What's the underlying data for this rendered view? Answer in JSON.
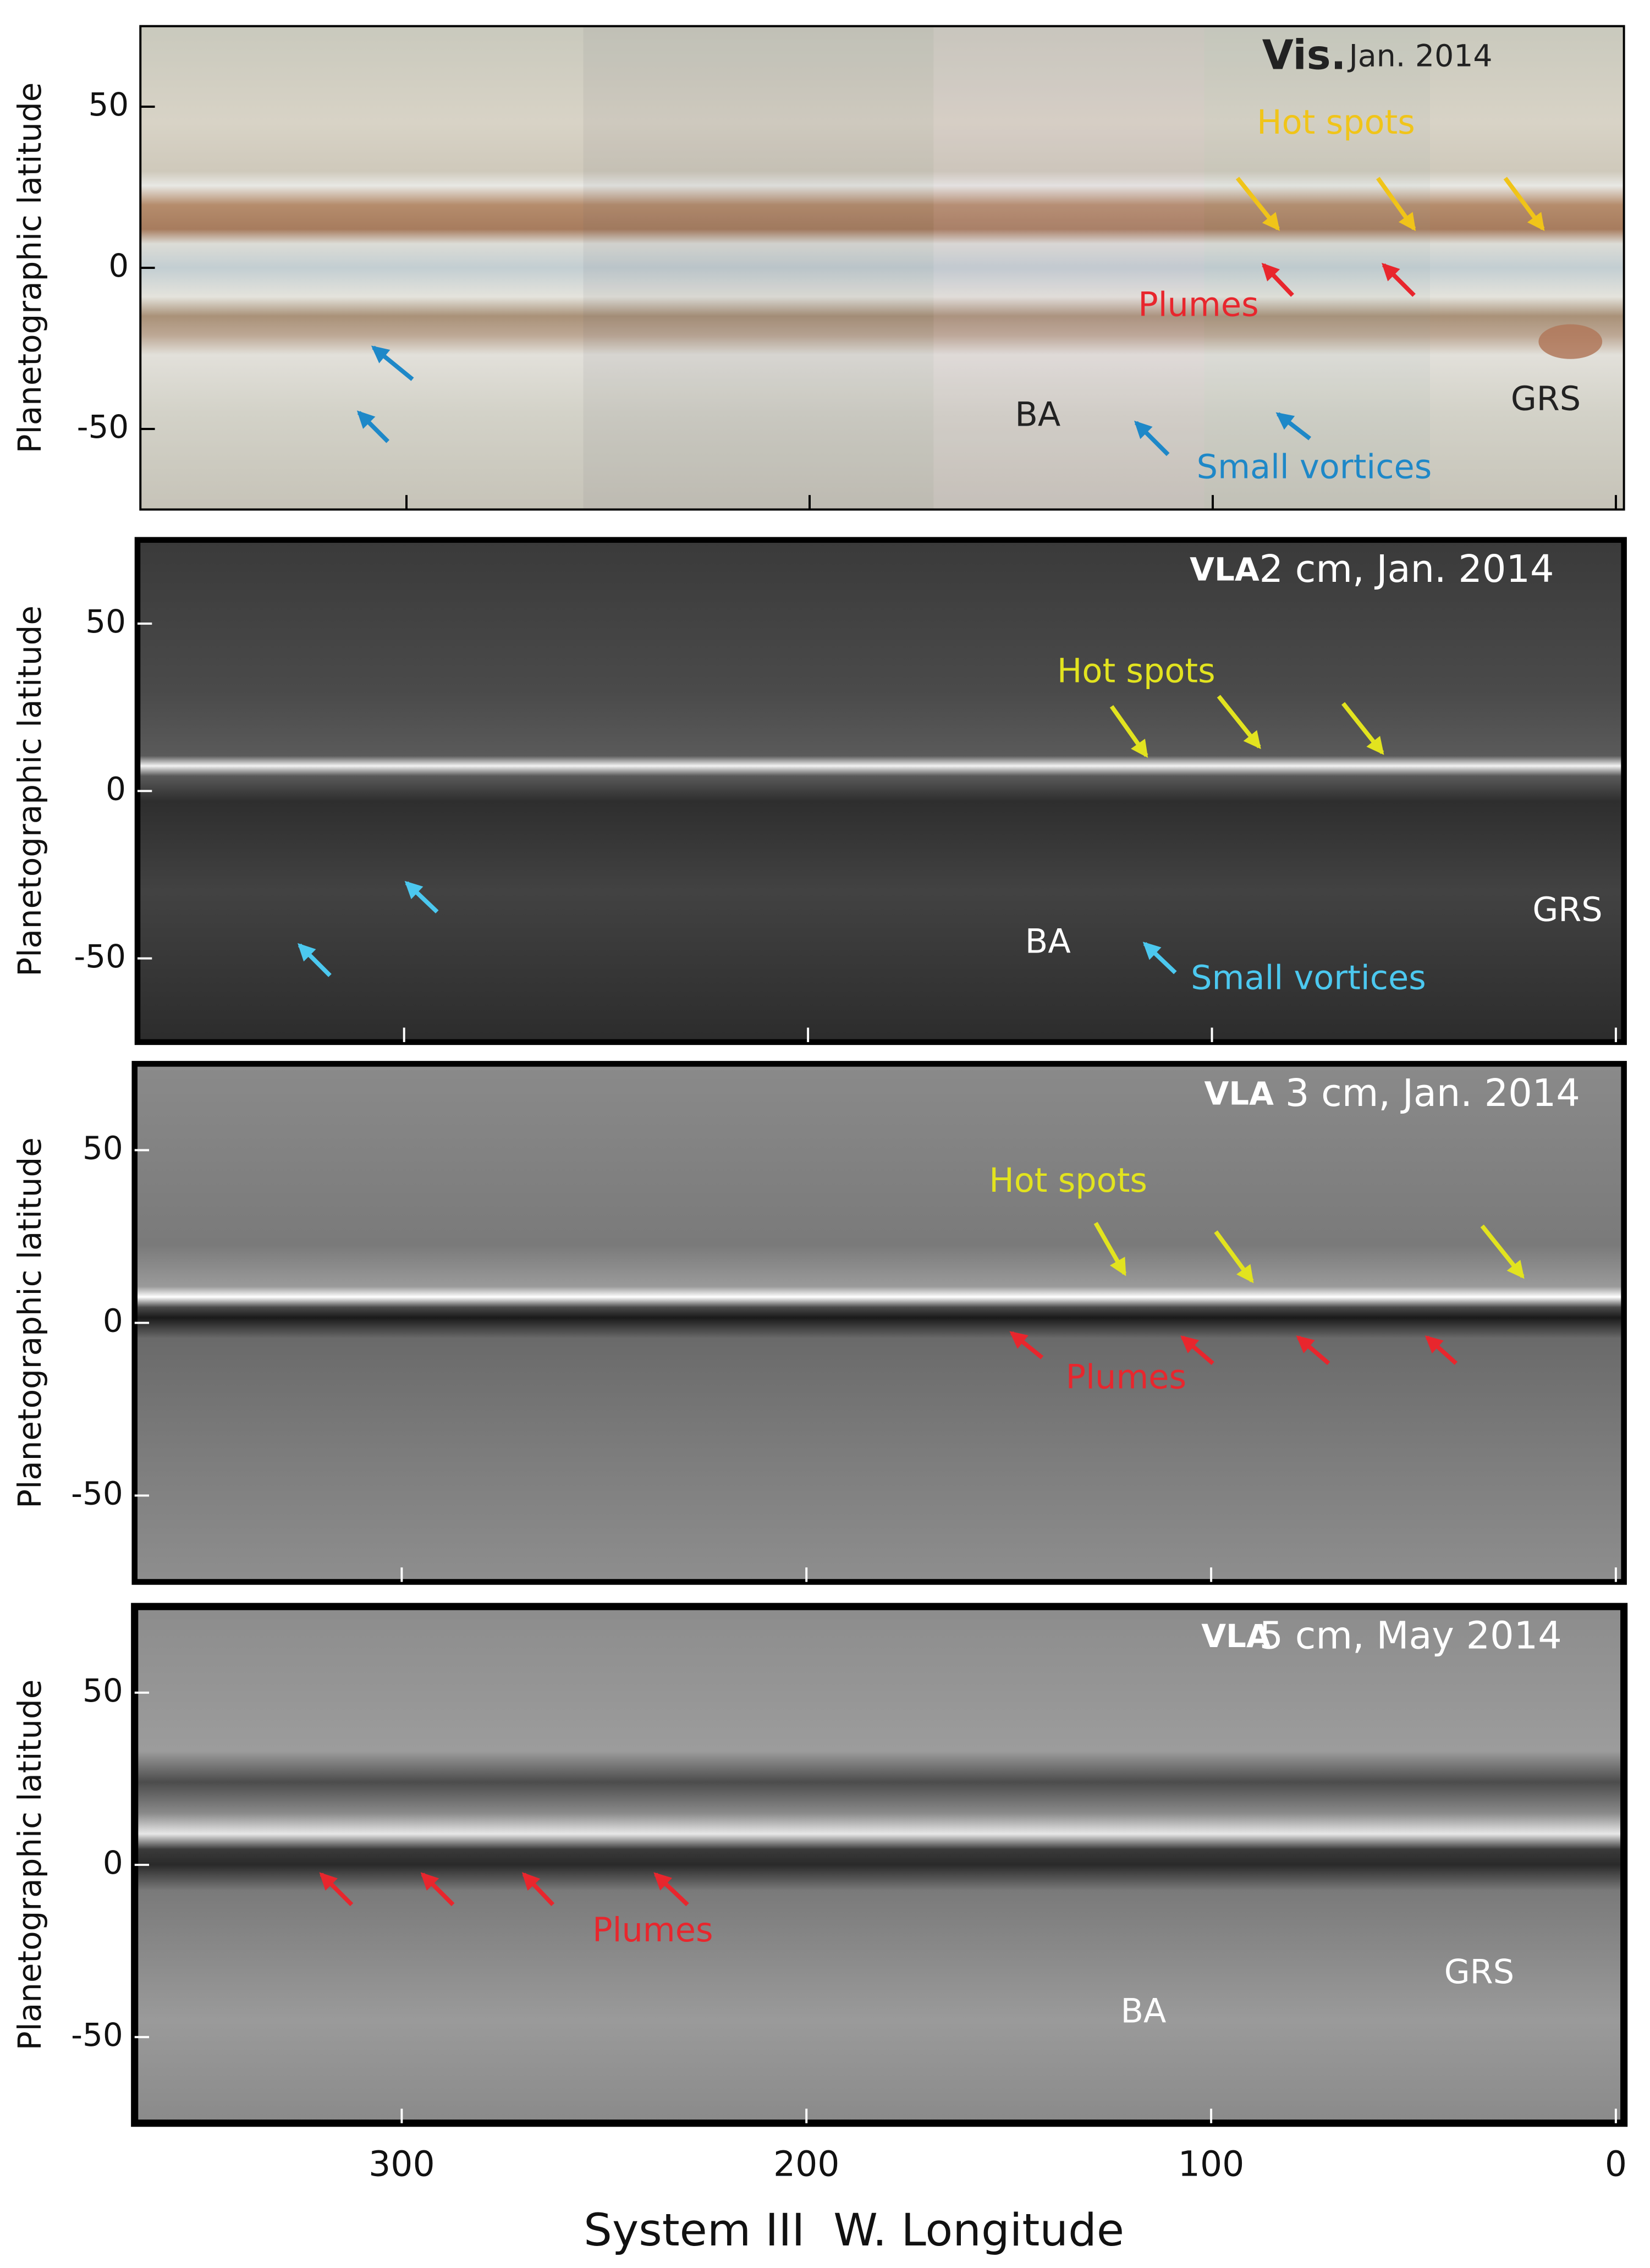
{
  "chart_data": [
    {
      "type": "map",
      "title": "Vis.",
      "subtitle": "Jan. 2014",
      "ylabel": "Planetographic latitude",
      "xlim": [
        366,
        -2
      ],
      "xticks": [
        0,
        100,
        200,
        300
      ],
      "ylim": [
        -75,
        75
      ],
      "yticks": [
        -50,
        0,
        50
      ],
      "annotations": [
        {
          "text": "Hot spots",
          "color": "#f0c419"
        },
        {
          "text": "Plumes",
          "color": "#e8262d"
        },
        {
          "text": "BA",
          "color": "#222222"
        },
        {
          "text": "GRS",
          "color": "#222222"
        },
        {
          "text": "Small vortices",
          "color": "#1e88c8"
        }
      ]
    },
    {
      "type": "map",
      "title": "VLA",
      "subtitle": "2 cm, Jan. 2014",
      "ylabel": "Planetographic latitude",
      "xlim": [
        366,
        -2
      ],
      "xticks": [
        0,
        100,
        200,
        300
      ],
      "ylim": [
        -75,
        75
      ],
      "yticks": [
        -50,
        0,
        50
      ],
      "annotations": [
        {
          "text": "Hot spots",
          "color": "#e2e31f"
        },
        {
          "text": "BA",
          "color": "#ffffff"
        },
        {
          "text": "GRS",
          "color": "#ffffff"
        },
        {
          "text": "Small vortices",
          "color": "#4cc8ef"
        }
      ]
    },
    {
      "type": "map",
      "title": "VLA",
      "subtitle": "3 cm, Jan. 2014",
      "ylabel": "Planetographic latitude",
      "xlim": [
        366,
        -2
      ],
      "xticks": [
        0,
        100,
        200,
        300
      ],
      "ylim": [
        -75,
        75
      ],
      "yticks": [
        -50,
        0,
        50
      ],
      "annotations": [
        {
          "text": "Hot spots",
          "color": "#e2e31f"
        },
        {
          "text": "Plumes",
          "color": "#e8262d"
        }
      ]
    },
    {
      "type": "map",
      "title": "VLA",
      "subtitle": "5 cm, May 2014",
      "ylabel": "Planetographic latitude",
      "xlabel": "System III  W. Longitude",
      "xlim": [
        366,
        -2
      ],
      "xticks": [
        0,
        100,
        200,
        300
      ],
      "ylim": [
        -75,
        75
      ],
      "yticks": [
        -50,
        0,
        50
      ],
      "annotations": [
        {
          "text": "Plumes",
          "color": "#e8262d"
        },
        {
          "text": "BA",
          "color": "#ffffff"
        },
        {
          "text": "GRS",
          "color": "#ffffff"
        }
      ]
    }
  ]
}
